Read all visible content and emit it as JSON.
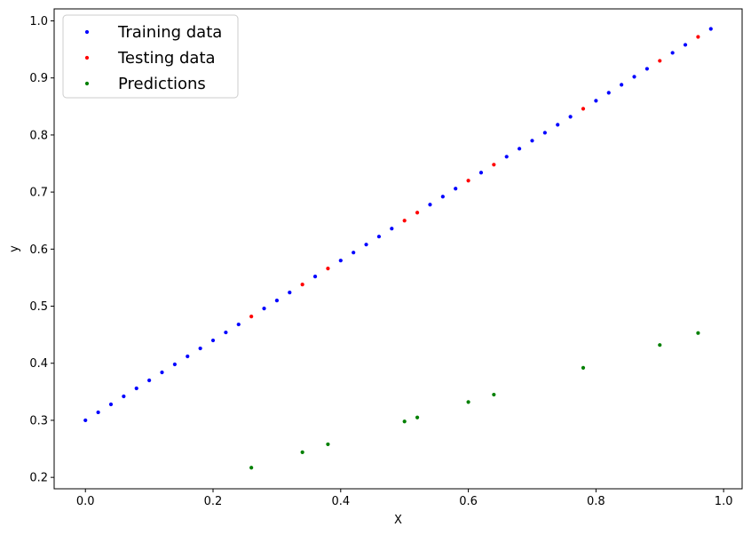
{
  "chart_data": {
    "type": "scatter",
    "xlabel": "X",
    "ylabel": "y",
    "xlim": [
      -0.049,
      1.029
    ],
    "ylim": [
      0.18,
      1.021
    ],
    "xticks": [
      0.0,
      0.2,
      0.4,
      0.6,
      0.8,
      1.0
    ],
    "xtick_labels": [
      "0.0",
      "0.2",
      "0.4",
      "0.6",
      "0.8",
      "1.0"
    ],
    "yticks": [
      0.2,
      0.3,
      0.4,
      0.5,
      0.6,
      0.7,
      0.8,
      0.9,
      1.0
    ],
    "ytick_labels": [
      "0.2",
      "0.3",
      "0.4",
      "0.5",
      "0.6",
      "0.7",
      "0.8",
      "0.9",
      "1.0"
    ],
    "grid": false,
    "legend_position": "top-left",
    "series": [
      {
        "name": "Training data",
        "color": "#0000ff",
        "x": [
          0.0,
          0.02,
          0.04,
          0.06,
          0.08,
          0.1,
          0.12,
          0.14,
          0.16,
          0.18,
          0.2,
          0.22,
          0.24,
          0.28,
          0.3,
          0.32,
          0.36,
          0.4,
          0.42,
          0.44,
          0.46,
          0.48,
          0.54,
          0.56,
          0.58,
          0.62,
          0.66,
          0.68,
          0.7,
          0.72,
          0.74,
          0.76,
          0.8,
          0.82,
          0.84,
          0.86,
          0.88,
          0.92,
          0.94,
          0.98
        ],
        "y": [
          0.3,
          0.314,
          0.328,
          0.342,
          0.356,
          0.37,
          0.384,
          0.398,
          0.412,
          0.426,
          0.44,
          0.454,
          0.468,
          0.496,
          0.51,
          0.524,
          0.552,
          0.58,
          0.594,
          0.608,
          0.622,
          0.636,
          0.678,
          0.692,
          0.706,
          0.734,
          0.762,
          0.776,
          0.79,
          0.804,
          0.818,
          0.832,
          0.86,
          0.874,
          0.888,
          0.902,
          0.916,
          0.944,
          0.958,
          0.986
        ]
      },
      {
        "name": "Testing data",
        "color": "#ff0000",
        "x": [
          0.26,
          0.34,
          0.38,
          0.5,
          0.52,
          0.6,
          0.64,
          0.78,
          0.9,
          0.96
        ],
        "y": [
          0.482,
          0.538,
          0.566,
          0.65,
          0.664,
          0.72,
          0.748,
          0.846,
          0.93,
          0.972
        ]
      },
      {
        "name": "Predictions",
        "color": "#008000",
        "x": [
          0.26,
          0.34,
          0.38,
          0.5,
          0.52,
          0.6,
          0.64,
          0.78,
          0.9,
          0.96
        ],
        "y": [
          0.217,
          0.244,
          0.258,
          0.298,
          0.305,
          0.332,
          0.345,
          0.392,
          0.432,
          0.453
        ]
      }
    ]
  }
}
